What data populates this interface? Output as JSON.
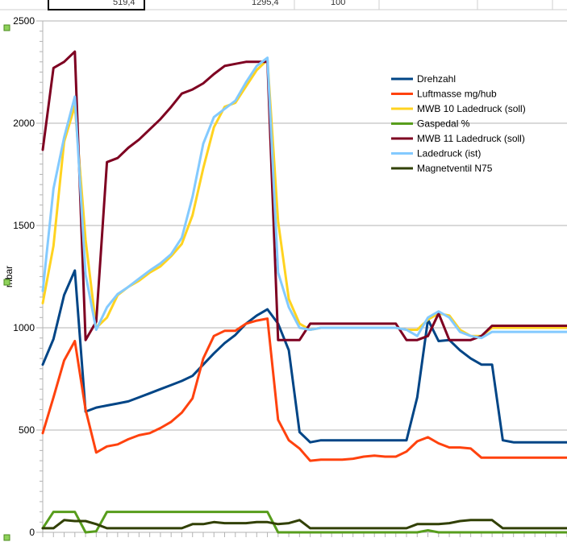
{
  "sheet_row": {
    "cells": [
      "519,4",
      "1295,4",
      "100"
    ]
  },
  "chart_data": {
    "type": "line",
    "ylabel": "mbar",
    "ylim": [
      0,
      2500
    ],
    "yticks": [
      "0",
      "500",
      "1000",
      "1500",
      "2000",
      "2500"
    ],
    "ytick_values": [
      0,
      500,
      1000,
      1500,
      2000,
      2500
    ],
    "grid": true,
    "legend_position": "top-right",
    "x": [
      1,
      2,
      3,
      4,
      5,
      6,
      7,
      8,
      9,
      10,
      11,
      12,
      13,
      14,
      15,
      16,
      17,
      18,
      19,
      20,
      21,
      22,
      23,
      24,
      25,
      26,
      27,
      28,
      29,
      30,
      31,
      32,
      33,
      34,
      35,
      36,
      37,
      38,
      39,
      40,
      41,
      42,
      43,
      44,
      45,
      46,
      47,
      48,
      49,
      50
    ],
    "series": [
      {
        "name": "Drehzahl",
        "color": "#004586",
        "values": [
          820,
          945,
          1160,
          1280,
          590,
          610,
          620,
          630,
          640,
          660,
          680,
          700,
          720,
          740,
          765,
          820,
          875,
          925,
          965,
          1020,
          1060,
          1090,
          1020,
          890,
          490,
          440,
          450,
          450,
          450,
          450,
          450,
          450,
          450,
          450,
          450,
          660,
          1040,
          935,
          940,
          890,
          850,
          820,
          820,
          450,
          440,
          440,
          440,
          440,
          440,
          440
        ]
      },
      {
        "name": "Luftmasse mg/hub",
        "color": "#ff420e",
        "values": [
          485,
          660,
          840,
          935,
          600,
          390,
          420,
          430,
          455,
          475,
          485,
          510,
          540,
          585,
          655,
          850,
          960,
          985,
          985,
          1020,
          1035,
          1045,
          550,
          450,
          410,
          350,
          355,
          355,
          355,
          360,
          370,
          375,
          370,
          370,
          395,
          445,
          465,
          435,
          415,
          415,
          410,
          365,
          365,
          365,
          365,
          365,
          365,
          365,
          365,
          365
        ]
      },
      {
        "name": "MWB 10 Ladedruck (soll)",
        "color": "#ffd320",
        "values": [
          1120,
          1400,
          1910,
          2085,
          1430,
          1000,
          1050,
          1160,
          1200,
          1230,
          1270,
          1300,
          1350,
          1410,
          1550,
          1780,
          1980,
          2080,
          2100,
          2180,
          2260,
          2310,
          1520,
          1140,
          1020,
          990,
          1000,
          1000,
          1000,
          1000,
          1000,
          1000,
          1000,
          1000,
          990,
          990,
          1040,
          1070,
          1060,
          990,
          960,
          960,
          1000,
          1000,
          1000,
          1000,
          1000,
          1000,
          1000,
          1000
        ]
      },
      {
        "name": "Gaspedal %",
        "color": "#579d1c",
        "values": [
          20,
          100,
          100,
          100,
          0,
          5,
          100,
          100,
          100,
          100,
          100,
          100,
          100,
          100,
          100,
          100,
          100,
          100,
          100,
          100,
          100,
          100,
          0,
          0,
          0,
          0,
          0,
          0,
          0,
          0,
          0,
          0,
          0,
          0,
          0,
          0,
          10,
          0,
          0,
          0,
          0,
          0,
          0,
          0,
          0,
          0,
          0,
          0,
          0,
          0
        ]
      },
      {
        "name": "MWB 11 Ladedruck (soll)",
        "color": "#7e0021",
        "values": [
          1870,
          2270,
          2300,
          2350,
          940,
          1030,
          1810,
          1830,
          1880,
          1920,
          1970,
          2020,
          2080,
          2145,
          2165,
          2195,
          2240,
          2280,
          2290,
          2300,
          2300,
          2300,
          940,
          940,
          940,
          1020,
          1020,
          1020,
          1020,
          1020,
          1020,
          1020,
          1020,
          1020,
          940,
          940,
          960,
          1070,
          940,
          940,
          940,
          960,
          1010,
          1010,
          1010,
          1010,
          1010,
          1010,
          1010,
          1010
        ]
      },
      {
        "name": "Ladedruck (ist)",
        "color": "#83caff",
        "values": [
          1180,
          1680,
          1930,
          2130,
          1260,
          990,
          1100,
          1165,
          1200,
          1240,
          1280,
          1315,
          1360,
          1440,
          1640,
          1900,
          2030,
          2070,
          2110,
          2200,
          2280,
          2320,
          1270,
          1100,
          1000,
          990,
          1000,
          1000,
          1000,
          1000,
          1000,
          1000,
          1000,
          1000,
          990,
          960,
          1050,
          1080,
          1050,
          980,
          960,
          950,
          980,
          980,
          980,
          980,
          980,
          980,
          980,
          980
        ]
      },
      {
        "name": "Magnetventil N75",
        "color": "#314004",
        "values": [
          20,
          20,
          60,
          55,
          55,
          40,
          20,
          20,
          20,
          20,
          20,
          20,
          20,
          20,
          40,
          40,
          50,
          45,
          45,
          45,
          50,
          50,
          40,
          45,
          60,
          20,
          20,
          20,
          20,
          20,
          20,
          20,
          20,
          20,
          20,
          40,
          40,
          40,
          45,
          55,
          60,
          60,
          60,
          20,
          20,
          20,
          20,
          20,
          20,
          20
        ]
      }
    ]
  }
}
